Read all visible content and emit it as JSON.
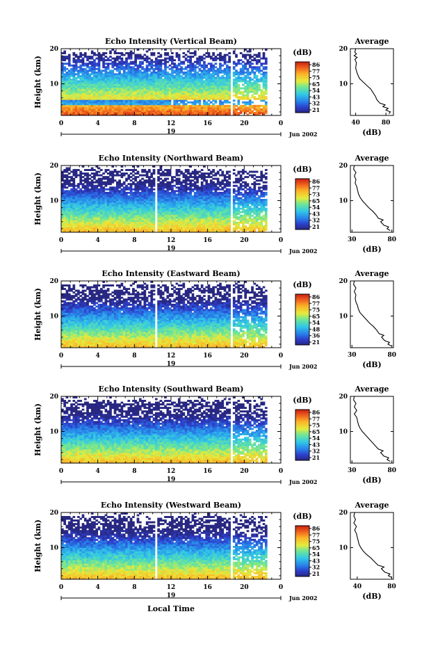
{
  "figure": {
    "xlabel": "Local Time",
    "date_label": "Jun 2002",
    "date_day": "19",
    "ylabel": "Height (km)",
    "cb_unit": "(dB)",
    "avg_title": "Average",
    "avg_xlabel": "(dB)"
  },
  "chart_data": [
    {
      "type": "heatmap",
      "title": "Echo Intensity (Vertical Beam)",
      "ylabel": "Height (km)",
      "xlabel": "Local Time",
      "xlim": [
        0,
        24
      ],
      "x_ticks": [
        "0",
        "4",
        "8",
        "12",
        "16",
        "20",
        "0"
      ],
      "ylim": [
        1,
        20
      ],
      "y_ticks": [
        "10",
        "20"
      ],
      "colorbar": {
        "label": "(dB)",
        "ticks": [
          "86",
          "77",
          "75",
          "65",
          "54",
          "43",
          "32",
          "21"
        ],
        "range": [
          21,
          86
        ]
      },
      "average_profile": {
        "title": "Average",
        "xlabel": "(dB)",
        "x_ticks": [
          "40",
          "80"
        ],
        "xlim": [
          33,
          90
        ],
        "y_ticks": [
          "10",
          "20"
        ],
        "points": [
          [
            84,
            1.5
          ],
          [
            86,
            2
          ],
          [
            80,
            2.5
          ],
          [
            83,
            3
          ],
          [
            76,
            3.5
          ],
          [
            79,
            4
          ],
          [
            72,
            4.5
          ],
          [
            68,
            5.5
          ],
          [
            66,
            6.5
          ],
          [
            63,
            7.5
          ],
          [
            60,
            8.5
          ],
          [
            55,
            9.5
          ],
          [
            50,
            10.5
          ],
          [
            45,
            11.5
          ],
          [
            42,
            13
          ],
          [
            40,
            14.5
          ],
          [
            41,
            16
          ],
          [
            39,
            17
          ],
          [
            42,
            17.5
          ],
          [
            38,
            18
          ],
          [
            41,
            18.5
          ],
          [
            39,
            19
          ],
          [
            40,
            20
          ]
        ]
      }
    },
    {
      "type": "heatmap",
      "title": "Echo Intensity (Northward Beam)",
      "ylabel": "Height (km)",
      "xlabel": "Local Time",
      "xlim": [
        0,
        24
      ],
      "x_ticks": [
        "0",
        "4",
        "8",
        "12",
        "16",
        "20",
        "0"
      ],
      "ylim": [
        1,
        20
      ],
      "y_ticks": [
        "10",
        "20"
      ],
      "colorbar": {
        "label": "(dB)",
        "ticks": [
          "86",
          "77",
          "73",
          "65",
          "54",
          "43",
          "32",
          "21"
        ],
        "range": [
          21,
          86
        ]
      },
      "average_profile": {
        "title": "Average",
        "xlabel": "(dB)",
        "x_ticks": [
          "30",
          "80"
        ],
        "xlim": [
          28,
          82
        ],
        "y_ticks": [
          "10",
          "20"
        ],
        "points": [
          [
            78,
            1.5
          ],
          [
            74,
            2
          ],
          [
            76,
            2.5
          ],
          [
            70,
            3
          ],
          [
            66,
            4
          ],
          [
            69,
            4.5
          ],
          [
            63,
            5
          ],
          [
            60,
            6
          ],
          [
            56,
            7
          ],
          [
            51,
            8
          ],
          [
            47,
            9
          ],
          [
            43,
            10
          ],
          [
            40,
            11
          ],
          [
            38,
            12
          ],
          [
            37,
            13
          ],
          [
            36,
            14
          ],
          [
            34,
            15
          ],
          [
            35,
            16
          ],
          [
            33,
            17
          ],
          [
            35,
            18
          ],
          [
            32,
            19
          ],
          [
            33,
            20
          ]
        ]
      }
    },
    {
      "type": "heatmap",
      "title": "Echo Intensity (Eastward Beam)",
      "ylabel": "Height (km)",
      "xlabel": "Local Time",
      "xlim": [
        0,
        24
      ],
      "x_ticks": [
        "0",
        "4",
        "8",
        "12",
        "16",
        "20",
        "0"
      ],
      "ylim": [
        1,
        20
      ],
      "y_ticks": [
        "10",
        "20"
      ],
      "colorbar": {
        "label": "(dB)",
        "ticks": [
          "86",
          "77",
          "75",
          "65",
          "54",
          "48",
          "36",
          "21"
        ],
        "range": [
          21,
          86
        ]
      },
      "average_profile": {
        "title": "Average",
        "xlabel": "(dB)",
        "x_ticks": [
          "30",
          "80"
        ],
        "xlim": [
          28,
          82
        ],
        "y_ticks": [
          "10",
          "20"
        ],
        "points": [
          [
            79,
            1.5
          ],
          [
            75,
            2
          ],
          [
            77,
            2.5
          ],
          [
            71,
            3
          ],
          [
            67,
            4
          ],
          [
            70,
            4.5
          ],
          [
            64,
            5
          ],
          [
            61,
            6
          ],
          [
            57,
            7
          ],
          [
            52,
            8
          ],
          [
            48,
            9
          ],
          [
            44,
            10
          ],
          [
            40,
            11
          ],
          [
            38,
            12
          ],
          [
            37,
            13
          ],
          [
            35,
            14
          ],
          [
            34,
            15
          ],
          [
            35,
            16
          ],
          [
            33,
            17
          ],
          [
            35,
            18
          ],
          [
            32,
            19
          ],
          [
            33,
            20
          ]
        ]
      }
    },
    {
      "type": "heatmap",
      "title": "Echo Intensity (Southward Beam)",
      "ylabel": "Height (km)",
      "xlabel": "Local Time",
      "xlim": [
        0,
        24
      ],
      "x_ticks": [
        "0",
        "4",
        "8",
        "12",
        "16",
        "20",
        "0"
      ],
      "ylim": [
        1,
        20
      ],
      "y_ticks": [
        "10",
        "20"
      ],
      "colorbar": {
        "label": "(dB)",
        "ticks": [
          "86",
          "77",
          "75",
          "65",
          "54",
          "43",
          "32",
          "21"
        ],
        "range": [
          21,
          86
        ]
      },
      "average_profile": {
        "title": "Average",
        "xlabel": "(dB)",
        "x_ticks": [
          "30",
          "80"
        ],
        "xlim": [
          28,
          82
        ],
        "y_ticks": [
          "10",
          "20"
        ],
        "points": [
          [
            78,
            1.5
          ],
          [
            74,
            2
          ],
          [
            76,
            2.5
          ],
          [
            70,
            3
          ],
          [
            66,
            4
          ],
          [
            69,
            4.5
          ],
          [
            63,
            5
          ],
          [
            59,
            6
          ],
          [
            55,
            7
          ],
          [
            51,
            8
          ],
          [
            47,
            9
          ],
          [
            43,
            10
          ],
          [
            40,
            11
          ],
          [
            38,
            12
          ],
          [
            37,
            13
          ],
          [
            36,
            14
          ],
          [
            33,
            15
          ],
          [
            36,
            16
          ],
          [
            33,
            17
          ],
          [
            35,
            18
          ],
          [
            32,
            19
          ],
          [
            33,
            20
          ]
        ]
      }
    },
    {
      "type": "heatmap",
      "title": "Echo Intensity (Westward Beam)",
      "ylabel": "Height (km)",
      "xlabel": "Local Time",
      "xlim": [
        0,
        24
      ],
      "x_ticks": [
        "0",
        "4",
        "8",
        "12",
        "16",
        "20",
        "0"
      ],
      "ylim": [
        1,
        20
      ],
      "y_ticks": [
        "10",
        "20"
      ],
      "colorbar": {
        "label": "(dB)",
        "ticks": [
          "86",
          "77",
          "75",
          "65",
          "54",
          "43",
          "32",
          "21"
        ],
        "range": [
          21,
          86
        ]
      },
      "average_profile": {
        "title": "Average",
        "xlabel": "(dB)",
        "x_ticks": [
          "40",
          "80"
        ],
        "xlim": [
          32,
          82
        ],
        "y_ticks": [
          "10",
          "20"
        ],
        "points": [
          [
            80,
            1.5
          ],
          [
            76,
            2
          ],
          [
            78,
            2.5
          ],
          [
            72,
            3
          ],
          [
            68,
            4
          ],
          [
            71,
            4.5
          ],
          [
            64,
            5
          ],
          [
            60,
            6
          ],
          [
            56,
            7
          ],
          [
            51,
            8
          ],
          [
            47,
            9
          ],
          [
            44,
            10
          ],
          [
            42,
            11
          ],
          [
            41,
            12
          ],
          [
            40,
            13
          ],
          [
            39,
            14
          ],
          [
            37,
            15
          ],
          [
            39,
            16
          ],
          [
            36,
            17
          ],
          [
            38,
            18
          ],
          [
            36,
            19
          ],
          [
            37,
            20
          ]
        ]
      }
    }
  ]
}
